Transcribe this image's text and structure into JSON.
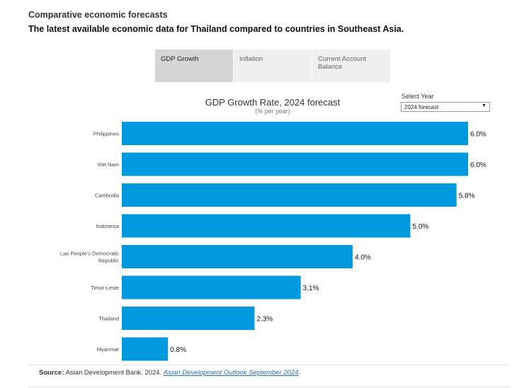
{
  "header": {
    "title": "Comparative economic forecasts",
    "subtitle": "The latest available economic data for Thailand compared to countries in Southeast Asia."
  },
  "tabs": [
    {
      "label": "GDP Growth",
      "active": true
    },
    {
      "label": "Inflation",
      "active": false
    },
    {
      "label": "Current Account Balance",
      "active": false
    }
  ],
  "select": {
    "label": "Select Year",
    "value": "2024 forecast"
  },
  "chart_data": {
    "type": "bar",
    "orientation": "horizontal",
    "title": "GDP Growth Rate, 2024 forecast",
    "subtitle": "(% per year)",
    "categories": [
      "Philippines",
      "Viet Nam",
      "Cambodia",
      "Indonesia",
      "Lao People's Democratic Republic",
      "Timor-Leste",
      "Thailand",
      "Myanmar"
    ],
    "values": [
      6.0,
      6.0,
      5.8,
      5.0,
      4.0,
      3.1,
      2.3,
      0.8
    ],
    "value_labels": [
      "6.0%",
      "6.0%",
      "5.8%",
      "5.0%",
      "4.0%",
      "3.1%",
      "2.3%",
      "0.8%"
    ],
    "xlim": [
      0,
      6.0
    ],
    "grid": false,
    "bar_color": "#0099dd"
  },
  "source": {
    "label": "Source:",
    "text": "Asian Development Bank. 2024.",
    "link_text": "Asian Development Outlook September 2024",
    "suffix": "."
  }
}
